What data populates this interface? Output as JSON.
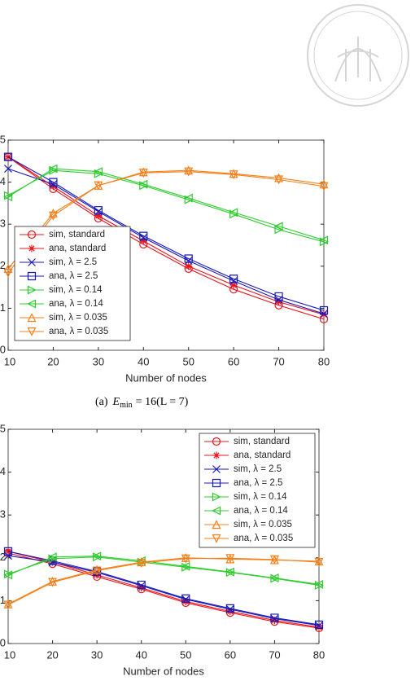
{
  "chart_data": [
    {
      "type": "line",
      "xlabel": "Number of nodes",
      "x": [
        10,
        20,
        30,
        40,
        50,
        60,
        70,
        80
      ],
      "xlim": [
        10,
        80
      ],
      "xticks": [
        10,
        20,
        30,
        40,
        50,
        60,
        70,
        80
      ],
      "ylim": [
        0,
        5
      ],
      "yticks": [
        0,
        1,
        2,
        3,
        4,
        5
      ],
      "grid": false,
      "legend": "lower left",
      "series": [
        {
          "name": "sim, standard",
          "color": "#e8141c",
          "marker": "circle",
          "values": [
            4.6,
            3.84,
            3.14,
            2.52,
            1.94,
            1.45,
            1.07,
            0.74
          ]
        },
        {
          "name": "ana, standard",
          "color": "#e8141c",
          "marker": "asterisk",
          "values": [
            4.6,
            3.9,
            3.2,
            2.6,
            2.0,
            1.55,
            1.15,
            0.85
          ]
        },
        {
          "name": "sim, λ = 2.5",
          "color": "#1a1ab8",
          "marker": "x",
          "values": [
            4.32,
            3.95,
            3.3,
            2.68,
            2.13,
            1.65,
            1.2,
            0.87
          ]
        },
        {
          "name": "ana, λ = 2.5",
          "color": "#1a1ab8",
          "marker": "square",
          "values": [
            4.6,
            4.0,
            3.33,
            2.72,
            2.18,
            1.7,
            1.28,
            0.95
          ]
        },
        {
          "name": "sim, λ = 0.14",
          "color": "#2ecc2e",
          "marker": "triangle-right",
          "values": [
            3.68,
            4.28,
            4.2,
            3.92,
            3.58,
            3.24,
            2.87,
            2.58
          ]
        },
        {
          "name": "ana, λ = 0.14",
          "color": "#2ecc2e",
          "marker": "triangle-left",
          "values": [
            3.65,
            4.32,
            4.25,
            3.95,
            3.62,
            3.28,
            2.95,
            2.62
          ]
        },
        {
          "name": "sim, λ = 0.035",
          "color": "#f57f17",
          "marker": "triangle-up",
          "values": [
            1.94,
            3.26,
            3.92,
            4.24,
            4.28,
            4.2,
            4.1,
            3.95
          ]
        },
        {
          "name": "ana, λ = 0.035",
          "color": "#f57f17",
          "marker": "triangle-down",
          "values": [
            1.84,
            3.2,
            3.92,
            4.22,
            4.25,
            4.18,
            4.06,
            3.9
          ]
        }
      ]
    },
    {
      "type": "line",
      "xlabel": "Number of nodes",
      "x": [
        10,
        20,
        30,
        40,
        50,
        60,
        70,
        80
      ],
      "xlim": [
        10,
        80
      ],
      "xticks": [
        10,
        20,
        30,
        40,
        50,
        60,
        70,
        80
      ],
      "ylim": [
        0,
        5
      ],
      "yticks": [
        0,
        1,
        2,
        3,
        4,
        5
      ],
      "grid": false,
      "legend": "upper right",
      "series": [
        {
          "name": "sim, standard",
          "color": "#e8141c",
          "marker": "circle",
          "values": [
            2.11,
            1.86,
            1.56,
            1.27,
            0.95,
            0.72,
            0.51,
            0.36
          ]
        },
        {
          "name": "ana, standard",
          "color": "#e8141c",
          "marker": "asterisk",
          "values": [
            2.15,
            1.9,
            1.6,
            1.3,
            0.98,
            0.75,
            0.54,
            0.38
          ]
        },
        {
          "name": "sim, λ = 2.5",
          "color": "#1a1ab8",
          "marker": "x",
          "values": [
            2.05,
            1.9,
            1.66,
            1.35,
            1.03,
            0.8,
            0.58,
            0.42
          ]
        },
        {
          "name": "ana, λ = 2.5",
          "color": "#1a1ab8",
          "marker": "square",
          "values": [
            2.15,
            1.93,
            1.68,
            1.37,
            1.05,
            0.82,
            0.6,
            0.44
          ]
        },
        {
          "name": "sim, λ = 0.14",
          "color": "#2ecc2e",
          "marker": "triangle-right",
          "values": [
            1.62,
            1.98,
            2.02,
            1.9,
            1.78,
            1.66,
            1.52,
            1.36
          ]
        },
        {
          "name": "ana, λ = 0.14",
          "color": "#2ecc2e",
          "marker": "triangle-left",
          "values": [
            1.6,
            2.02,
            2.04,
            1.93,
            1.8,
            1.67,
            1.53,
            1.38
          ]
        },
        {
          "name": "sim, λ = 0.035",
          "color": "#f57f17",
          "marker": "triangle-up",
          "values": [
            0.92,
            1.45,
            1.72,
            1.9,
            2.0,
            1.97,
            1.95,
            1.92
          ]
        },
        {
          "name": "ana, λ = 0.035",
          "color": "#f57f17",
          "marker": "triangle-down",
          "values": [
            0.9,
            1.43,
            1.7,
            1.88,
            1.98,
            1.99,
            1.96,
            1.9
          ]
        }
      ]
    }
  ],
  "caption": {
    "label": "(a)",
    "symbol": "E",
    "subscript": "min",
    "text": "= 16(L = 7)"
  }
}
